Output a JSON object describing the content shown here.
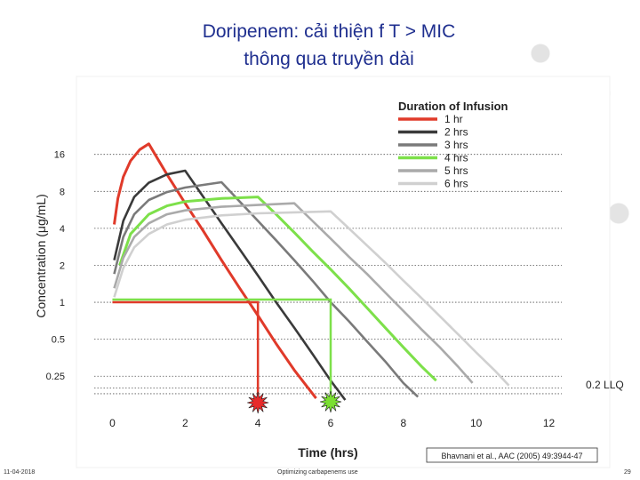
{
  "slide": {
    "title_line1": "Doripenem: cải thiện f T > MIC",
    "title_line2": "thông qua truyền dài",
    "footer_date": "11-04-2018",
    "footer_center": "Optimizing carbapenems use",
    "footer_page": "29"
  },
  "chart_data": {
    "type": "line",
    "xlabel": "Time  (hrs)",
    "ylabel": "Concentration  (μg/mL)",
    "y_scale": "log2",
    "xlim": [
      -0.5,
      12.5
    ],
    "ylim": [
      0.14,
      30
    ],
    "x_ticks": [
      "0",
      "2",
      "4",
      "6",
      "8",
      "10",
      "12"
    ],
    "y_ticks": [
      "16",
      "8",
      "4",
      "2",
      "1",
      "0.5",
      "0.25"
    ],
    "y_tick_values": [
      16,
      8,
      4,
      2,
      1,
      0.5,
      0.25
    ],
    "llq_label": "0.2 LLQ",
    "llq_value": 0.2,
    "legend_title": "Duration of Infusion",
    "legend_position": "top-right",
    "grid": "horizontal dotted",
    "series": [
      {
        "name": "1 hr",
        "color": "#e03a2a",
        "points": [
          [
            0.05,
            4.3
          ],
          [
            0.15,
            7.0
          ],
          [
            0.3,
            10.5
          ],
          [
            0.5,
            14.2
          ],
          [
            0.75,
            17.5
          ],
          [
            1.0,
            19.5
          ],
          [
            1.5,
            11.0
          ],
          [
            2.0,
            6.4
          ],
          [
            2.5,
            3.8
          ],
          [
            3.0,
            2.2
          ],
          [
            3.5,
            1.3
          ],
          [
            4.0,
            0.78
          ],
          [
            4.5,
            0.46
          ],
          [
            5.0,
            0.28
          ],
          [
            5.6,
            0.165
          ]
        ]
      },
      {
        "name": "2 hrs",
        "color": "#3a3a3a",
        "points": [
          [
            0.05,
            2.2
          ],
          [
            0.3,
            4.6
          ],
          [
            0.6,
            7.2
          ],
          [
            1.0,
            9.4
          ],
          [
            1.5,
            11.0
          ],
          [
            2.0,
            11.8
          ],
          [
            2.5,
            7.2
          ],
          [
            3.0,
            4.4
          ],
          [
            3.5,
            2.7
          ],
          [
            4.0,
            1.65
          ],
          [
            4.5,
            1.0
          ],
          [
            5.0,
            0.62
          ],
          [
            5.5,
            0.38
          ],
          [
            6.0,
            0.23
          ],
          [
            6.4,
            0.16
          ]
        ]
      },
      {
        "name": "3 hrs",
        "color": "#7a7a7a",
        "points": [
          [
            0.05,
            1.7
          ],
          [
            0.3,
            3.4
          ],
          [
            0.6,
            5.2
          ],
          [
            1.0,
            6.8
          ],
          [
            1.5,
            7.9
          ],
          [
            2.0,
            8.6
          ],
          [
            3.0,
            9.5
          ],
          [
            3.5,
            6.6
          ],
          [
            4.0,
            4.6
          ],
          [
            4.5,
            3.2
          ],
          [
            5.0,
            2.2
          ],
          [
            5.5,
            1.5
          ],
          [
            6.0,
            1.0
          ],
          [
            6.5,
            0.7
          ],
          [
            7.0,
            0.48
          ],
          [
            7.5,
            0.33
          ],
          [
            8.0,
            0.22
          ],
          [
            8.4,
            0.17
          ]
        ]
      },
      {
        "name": "4 hrs",
        "color": "#7de04a",
        "points": [
          [
            0.2,
            2.0
          ],
          [
            0.5,
            3.6
          ],
          [
            1.0,
            5.2
          ],
          [
            1.5,
            6.1
          ],
          [
            2.0,
            6.6
          ],
          [
            3.0,
            7.0
          ],
          [
            4.0,
            7.2
          ],
          [
            4.5,
            5.2
          ],
          [
            5.0,
            3.7
          ],
          [
            5.5,
            2.6
          ],
          [
            6.0,
            1.85
          ],
          [
            6.5,
            1.3
          ],
          [
            7.0,
            0.9
          ],
          [
            7.5,
            0.62
          ],
          [
            8.0,
            0.43
          ],
          [
            8.5,
            0.3
          ],
          [
            8.9,
            0.23
          ]
        ]
      },
      {
        "name": "5 hrs",
        "color": "#aaaaaa",
        "points": [
          [
            0.05,
            1.3
          ],
          [
            0.3,
            2.3
          ],
          [
            0.6,
            3.4
          ],
          [
            1.0,
            4.4
          ],
          [
            1.5,
            5.2
          ],
          [
            2.0,
            5.6
          ],
          [
            3.0,
            6.0
          ],
          [
            4.0,
            6.2
          ],
          [
            5.0,
            6.4
          ],
          [
            5.5,
            4.6
          ],
          [
            6.0,
            3.3
          ],
          [
            6.5,
            2.35
          ],
          [
            7.0,
            1.7
          ],
          [
            7.5,
            1.2
          ],
          [
            8.0,
            0.85
          ],
          [
            8.5,
            0.6
          ],
          [
            9.0,
            0.43
          ],
          [
            9.5,
            0.3
          ],
          [
            9.9,
            0.22
          ]
        ]
      },
      {
        "name": "6 hrs",
        "color": "#d0d0d0",
        "points": [
          [
            0.05,
            1.1
          ],
          [
            0.3,
            1.9
          ],
          [
            0.6,
            2.8
          ],
          [
            1.0,
            3.6
          ],
          [
            1.5,
            4.3
          ],
          [
            2.0,
            4.7
          ],
          [
            3.0,
            5.1
          ],
          [
            4.0,
            5.3
          ],
          [
            5.0,
            5.4
          ],
          [
            6.0,
            5.5
          ],
          [
            6.5,
            4.0
          ],
          [
            7.0,
            2.9
          ],
          [
            7.5,
            2.1
          ],
          [
            8.0,
            1.5
          ],
          [
            8.5,
            1.08
          ],
          [
            9.0,
            0.77
          ],
          [
            9.5,
            0.55
          ],
          [
            10.0,
            0.39
          ],
          [
            10.5,
            0.28
          ],
          [
            10.9,
            0.21
          ]
        ]
      }
    ],
    "annotations": {
      "mic_value": 1,
      "red_mic_crossing_x": 4.0,
      "green_mic_crossing_x": 6.0,
      "red_mic_color": "#e03a2a",
      "green_mic_color": "#7de04a",
      "red_star_color": "#e82a2a",
      "green_star_color": "#7adf30"
    },
    "citation": "Bhavnani et al., AAC (2005) 49:3944-47"
  }
}
